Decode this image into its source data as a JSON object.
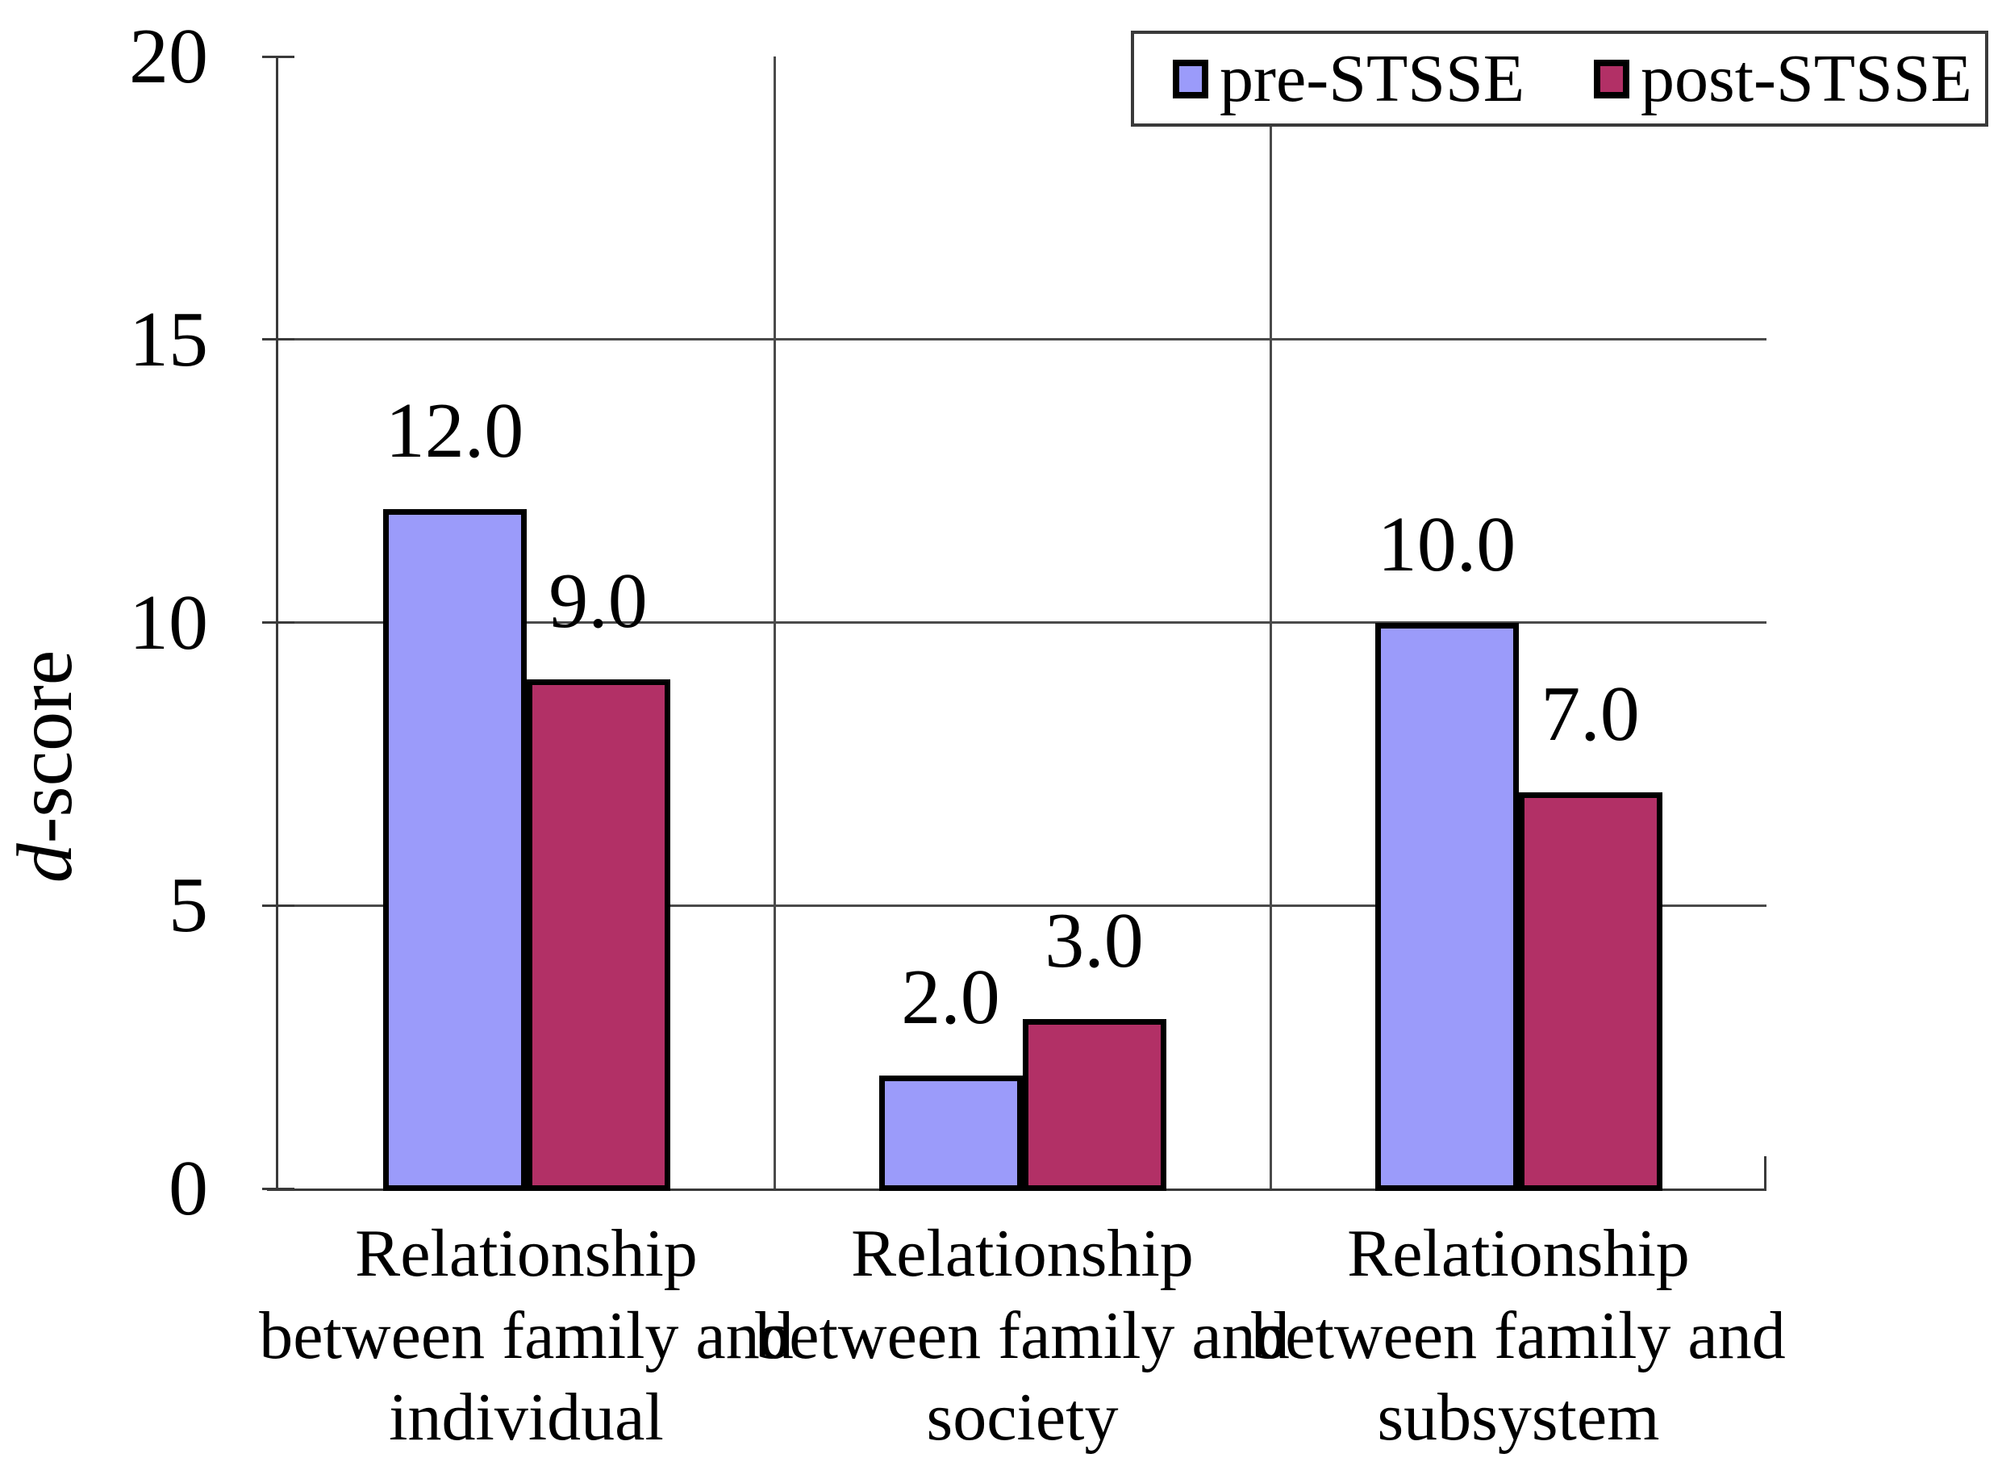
{
  "chart_data": {
    "type": "bar",
    "title": "",
    "ylabel": "d-score",
    "ylabel_italic": "d",
    "ylabel_rest": "-score",
    "ylim": [
      0,
      20
    ],
    "yticks": [
      0,
      5,
      10,
      15,
      20
    ],
    "gridline_values": [
      5,
      10,
      15
    ],
    "grid": true,
    "legend_position": "top-right",
    "categories": [
      [
        "Relationship",
        "between family and",
        "individual"
      ],
      [
        "Relationship",
        "between family and",
        "society"
      ],
      [
        "Relationship",
        "between family and",
        "subsystem"
      ]
    ],
    "series": [
      {
        "name": "pre-STSSE",
        "color": "#9b9bfa",
        "values": [
          12.0,
          2.0,
          10.0
        ],
        "value_labels": [
          "12.0",
          "2.0",
          "10.0"
        ]
      },
      {
        "name": "post-STSSE",
        "color": "#b23066",
        "values": [
          9.0,
          3.0,
          7.0
        ],
        "value_labels": [
          "9.0",
          "3.0",
          "7.0"
        ]
      }
    ]
  },
  "colors": {
    "axis": "#3a3a3a",
    "grid": "#4a4a4a",
    "bar_border": "#000000",
    "background": "#ffffff",
    "text": "#000000"
  }
}
